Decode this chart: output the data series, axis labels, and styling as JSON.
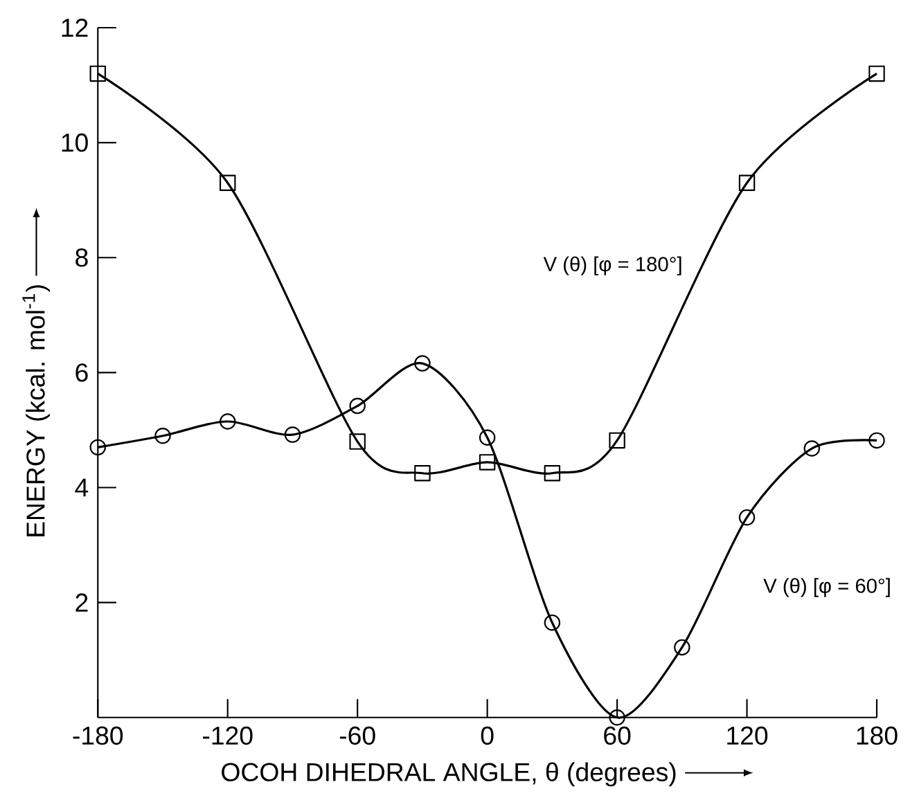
{
  "chart_data": {
    "type": "line",
    "xlabel": "OCOH DIHEDRAL ANGLE, θ (degrees)",
    "ylabel": "ENERGY (kcal. mol$^{-1}$)",
    "xlim": [
      -180,
      180
    ],
    "xticks": [
      -180,
      -120,
      -60,
      0,
      60,
      120,
      180
    ],
    "ylim": [
      0,
      12
    ],
    "yticks": [
      2,
      4,
      6,
      8,
      10,
      12
    ],
    "grid": false,
    "legend": false,
    "line_style": "solid",
    "series": [
      {
        "name": "V (θ) [φ = 180°]",
        "color": "#000000",
        "marker": "square",
        "x": [
          -180,
          -120,
          -60,
          -30,
          0,
          30,
          60,
          120,
          180
        ],
        "values": [
          11.2,
          9.3,
          4.8,
          4.25,
          4.44,
          4.25,
          4.82,
          9.3,
          11.2
        ]
      },
      {
        "name": "V (θ) [φ = 60°]",
        "color": "#000000",
        "marker": "circle",
        "x": [
          -180,
          -150,
          -120,
          -90,
          -60,
          -30,
          0,
          30,
          60,
          90,
          120,
          150,
          180
        ],
        "values": [
          4.7,
          4.9,
          5.15,
          4.92,
          5.42,
          6.16,
          4.87,
          1.65,
          0,
          1.22,
          3.48,
          4.68,
          4.82
        ]
      }
    ]
  }
}
